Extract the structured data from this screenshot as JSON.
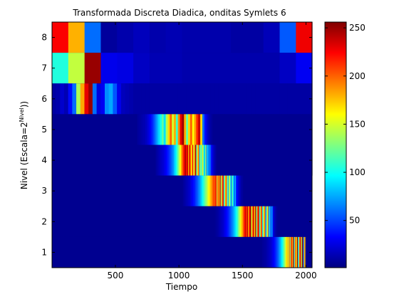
{
  "chart_data": {
    "type": "heatmap",
    "title": "Transformada Discreta Diadica, onditas Symlets 6",
    "xlabel": "Tiempo",
    "ylabel": "Nivel (Escala=2^Nivel))",
    "ylabel_parts": {
      "pre": "Nivel (Escala=2",
      "sup": "Nivel",
      "post": "))"
    },
    "xlim": [
      1,
      2048
    ],
    "xticks": [
      500,
      1000,
      1500,
      2000
    ],
    "ylim": [
      0.5,
      8.5
    ],
    "yticks": [
      1,
      2,
      3,
      4,
      5,
      6,
      7,
      8
    ],
    "colormap": "jet",
    "colorbar": {
      "range": [
        1,
        256
      ],
      "ticks": [
        50,
        100,
        150,
        200,
        250
      ]
    },
    "levels": [
      {
        "level": 8,
        "x_start": 1,
        "bin_width": 128,
        "values": [
          225,
          180,
          60,
          8,
          12,
          16,
          12,
          14,
          12,
          12,
          12,
          10,
          10,
          15,
          55,
          228
        ]
      },
      {
        "level": 7,
        "x_start": 1,
        "bin_width": 128,
        "values": [
          105,
          145,
          250,
          28,
          26,
          18,
          14,
          14,
          12,
          12,
          12,
          12,
          12,
          12,
          18,
          30
        ]
      },
      {
        "level": 6,
        "x_start": 0,
        "bin_width": 32,
        "values": [
          10,
          12,
          20,
          14,
          35,
          60,
          140,
          182,
          230,
          250,
          60,
          24,
          30,
          68,
          75,
          54,
          28,
          16,
          14,
          12,
          10,
          10,
          10,
          10,
          10,
          10,
          10,
          10,
          10,
          10,
          10,
          10,
          10,
          10,
          10,
          10,
          10,
          10,
          10,
          10,
          10,
          10,
          10,
          10,
          10,
          10,
          10,
          10,
          10,
          10,
          10,
          10,
          10,
          10,
          10,
          10,
          10,
          10,
          10,
          10,
          10,
          10,
          10,
          10
        ]
      },
      {
        "level": 5,
        "x_start": 0,
        "bin_width": 16,
        "values": [
          5,
          5,
          5,
          5,
          5,
          5,
          5,
          5,
          5,
          5,
          5,
          5,
          5,
          5,
          5,
          5,
          5,
          5,
          5,
          5,
          5,
          5,
          5,
          5,
          5,
          5,
          5,
          5,
          5,
          5,
          5,
          5,
          5,
          5,
          5,
          5,
          5,
          5,
          5,
          5,
          5,
          5,
          8,
          10,
          12,
          14,
          18,
          24,
          32,
          42,
          55,
          70,
          85,
          100,
          120,
          90,
          140,
          170,
          200,
          150,
          180,
          110,
          190,
          230,
          250,
          180,
          120,
          170,
          200,
          160,
          185,
          215,
          240,
          170,
          60,
          35,
          20,
          12,
          8,
          5,
          5,
          5,
          5,
          5,
          5,
          5,
          5,
          5,
          5,
          5,
          5,
          5,
          5,
          5,
          5,
          5,
          5,
          5,
          5,
          5,
          5,
          5,
          5,
          5,
          5,
          5,
          5,
          5,
          5,
          5,
          5,
          5,
          5,
          5,
          5,
          5,
          5,
          5,
          5,
          5,
          5,
          5,
          5,
          5,
          5,
          5,
          5,
          5
        ]
      },
      {
        "level": 4,
        "x_start": 0,
        "bin_width": 8,
        "values": [
          5,
          5,
          5,
          5,
          5,
          5,
          5,
          5,
          5,
          5,
          5,
          5,
          5,
          5,
          5,
          5,
          5,
          5,
          5,
          5,
          5,
          5,
          5,
          5,
          5,
          5,
          5,
          5,
          5,
          5,
          5,
          5,
          5,
          5,
          5,
          5,
          5,
          5,
          5,
          5,
          5,
          5,
          5,
          5,
          5,
          5,
          5,
          5,
          5,
          5,
          5,
          5,
          5,
          5,
          5,
          5,
          5,
          5,
          5,
          5,
          5,
          5,
          5,
          5,
          5,
          5,
          5,
          5,
          5,
          5,
          5,
          5,
          5,
          5,
          5,
          5,
          5,
          5,
          5,
          5,
          5,
          5,
          5,
          5,
          5,
          5,
          5,
          5,
          5,
          5,
          5,
          5,
          5,
          5,
          5,
          5,
          5,
          5,
          5,
          5,
          5,
          5,
          8,
          10,
          12,
          14,
          16,
          18,
          20,
          22,
          25,
          28,
          32,
          36,
          40,
          45,
          50,
          56,
          62,
          70,
          80,
          90,
          100,
          115,
          130,
          145,
          160,
          180,
          200,
          215,
          230,
          245,
          220,
          240,
          180,
          235,
          195,
          160,
          225,
          150,
          190,
          245,
          120,
          170,
          200,
          90,
          140,
          110,
          165,
          100,
          80,
          135,
          60,
          90,
          50,
          70,
          40,
          30,
          22,
          16,
          12,
          8,
          6,
          5,
          5,
          5,
          5,
          5,
          5,
          5,
          5,
          5,
          5,
          5,
          5,
          5,
          5,
          5,
          5,
          5,
          5,
          5,
          5,
          5,
          5,
          5,
          5,
          5,
          5,
          5,
          5,
          5,
          5,
          5,
          5,
          5,
          5,
          5,
          5,
          5,
          5,
          5,
          5,
          5,
          5,
          5,
          5,
          5,
          5,
          5,
          5,
          5,
          5,
          5,
          5,
          5,
          5,
          5,
          5,
          5,
          5,
          5,
          5,
          5,
          5,
          5,
          5,
          5,
          5,
          5,
          5,
          5,
          5,
          5,
          5,
          5,
          5,
          5,
          5,
          5,
          5,
          5,
          5,
          5,
          5,
          5,
          5,
          5,
          5,
          5,
          5,
          5,
          5,
          5,
          5,
          5
        ]
      },
      {
        "level": 3,
        "x_start": 0,
        "bin_width": 8,
        "values": [
          5,
          5,
          5,
          5,
          5,
          5,
          5,
          5,
          5,
          5,
          5,
          5,
          5,
          5,
          5,
          5,
          5,
          5,
          5,
          5,
          5,
          5,
          5,
          5,
          5,
          5,
          5,
          5,
          5,
          5,
          5,
          5,
          5,
          5,
          5,
          5,
          5,
          5,
          5,
          5,
          5,
          5,
          5,
          5,
          5,
          5,
          5,
          5,
          5,
          5,
          5,
          5,
          5,
          5,
          5,
          5,
          5,
          5,
          5,
          5,
          5,
          5,
          5,
          5,
          5,
          5,
          5,
          5,
          5,
          5,
          5,
          5,
          5,
          5,
          5,
          5,
          5,
          5,
          5,
          5,
          5,
          5,
          5,
          5,
          5,
          5,
          5,
          5,
          5,
          5,
          5,
          5,
          5,
          5,
          5,
          5,
          5,
          5,
          5,
          5,
          5,
          5,
          5,
          5,
          5,
          5,
          5,
          5,
          5,
          5,
          5,
          5,
          5,
          5,
          5,
          5,
          5,
          5,
          5,
          5,
          5,
          5,
          5,
          5,
          5,
          5,
          5,
          5,
          6,
          8,
          10,
          12,
          14,
          16,
          18,
          20,
          24,
          28,
          32,
          36,
          40,
          46,
          52,
          58,
          65,
          72,
          80,
          90,
          100,
          110,
          120,
          130,
          140,
          150,
          160,
          170,
          180,
          190,
          200,
          210,
          200,
          230,
          150,
          215,
          170,
          240,
          135,
          190,
          230,
          100,
          170,
          205,
          130,
          80,
          150,
          110,
          65,
          120,
          90,
          55,
          75,
          40,
          30,
          24,
          18,
          14,
          10,
          8,
          6,
          5,
          5,
          5,
          5,
          5,
          5,
          5,
          5,
          5,
          5,
          5,
          5,
          5,
          5,
          5,
          5,
          5,
          5,
          5,
          5,
          5,
          5,
          5,
          5,
          5,
          5,
          5,
          5,
          5,
          5,
          5,
          5,
          5,
          5,
          5,
          5,
          5,
          5,
          5,
          5,
          5,
          5,
          5,
          5,
          5,
          5,
          5,
          5,
          5,
          5,
          5,
          5,
          5,
          5,
          5,
          5,
          5,
          5,
          5,
          5,
          5,
          5,
          5,
          5,
          5,
          5
        ]
      },
      {
        "level": 2,
        "x_start": 0,
        "bin_width": 8,
        "values": [
          5,
          5,
          5,
          5,
          5,
          5,
          5,
          5,
          5,
          5,
          5,
          5,
          5,
          5,
          5,
          5,
          5,
          5,
          5,
          5,
          5,
          5,
          5,
          5,
          5,
          5,
          5,
          5,
          5,
          5,
          5,
          5,
          5,
          5,
          5,
          5,
          5,
          5,
          5,
          5,
          5,
          5,
          5,
          5,
          5,
          5,
          5,
          5,
          5,
          5,
          5,
          5,
          5,
          5,
          5,
          5,
          5,
          5,
          5,
          5,
          5,
          5,
          5,
          5,
          5,
          5,
          5,
          5,
          5,
          5,
          5,
          5,
          5,
          5,
          5,
          5,
          5,
          5,
          5,
          5,
          5,
          5,
          5,
          5,
          5,
          5,
          5,
          5,
          5,
          5,
          5,
          5,
          5,
          5,
          5,
          5,
          5,
          5,
          5,
          5,
          5,
          5,
          5,
          5,
          5,
          5,
          5,
          5,
          5,
          5,
          5,
          5,
          5,
          5,
          5,
          5,
          5,
          5,
          5,
          5,
          5,
          5,
          5,
          5,
          5,
          5,
          5,
          5,
          5,
          5,
          5,
          5,
          5,
          5,
          5,
          5,
          5,
          5,
          5,
          5,
          5,
          5,
          5,
          5,
          5,
          5,
          5,
          5,
          5,
          5,
          5,
          5,
          5,
          5,
          5,
          5,
          5,
          5,
          5,
          5,
          6,
          7,
          8,
          10,
          12,
          14,
          16,
          18,
          20,
          24,
          28,
          32,
          36,
          40,
          46,
          52,
          58,
          65,
          72,
          80,
          90,
          100,
          110,
          125,
          140,
          155,
          170,
          185,
          200,
          220,
          235,
          210,
          240,
          180,
          225,
          250,
          150,
          200,
          235,
          170,
          245,
          130,
          205,
          230,
          110,
          180,
          215,
          95,
          160,
          200,
          70,
          130,
          175,
          55,
          105,
          40,
          80,
          30,
          20,
          14,
          10,
          7,
          5,
          5,
          5,
          5,
          5,
          5,
          5,
          5,
          5,
          5,
          5,
          5,
          5,
          5,
          5,
          5,
          5,
          5,
          5,
          5,
          5,
          5,
          5,
          5,
          5,
          5,
          5,
          5,
          5
        ]
      },
      {
        "level": 1,
        "x_start": 0,
        "bin_width": 8,
        "values": [
          5,
          5,
          5,
          5,
          5,
          5,
          5,
          5,
          5,
          5,
          5,
          5,
          5,
          5,
          5,
          5,
          5,
          5,
          5,
          5,
          5,
          5,
          5,
          5,
          5,
          5,
          5,
          5,
          5,
          5,
          5,
          5,
          5,
          5,
          5,
          5,
          5,
          5,
          5,
          5,
          5,
          5,
          5,
          5,
          5,
          5,
          5,
          5,
          5,
          5,
          5,
          5,
          5,
          5,
          5,
          5,
          5,
          5,
          5,
          5,
          5,
          5,
          5,
          5,
          5,
          5,
          5,
          5,
          5,
          5,
          5,
          5,
          5,
          5,
          5,
          5,
          5,
          5,
          5,
          5,
          5,
          5,
          5,
          5,
          5,
          5,
          5,
          5,
          5,
          5,
          5,
          5,
          5,
          5,
          5,
          5,
          5,
          5,
          5,
          5,
          5,
          5,
          5,
          5,
          5,
          5,
          5,
          5,
          5,
          5,
          5,
          5,
          5,
          5,
          5,
          5,
          5,
          5,
          5,
          5,
          5,
          5,
          5,
          5,
          5,
          5,
          5,
          5,
          5,
          5,
          5,
          5,
          5,
          5,
          5,
          5,
          5,
          5,
          5,
          5,
          5,
          5,
          5,
          5,
          5,
          5,
          5,
          5,
          5,
          5,
          5,
          5,
          5,
          5,
          5,
          5,
          5,
          5,
          5,
          5,
          5,
          5,
          5,
          5,
          5,
          5,
          5,
          5,
          5,
          5,
          5,
          5,
          5,
          5,
          5,
          5,
          5,
          5,
          5,
          5,
          5,
          5,
          5,
          5,
          5,
          5,
          5,
          5,
          5,
          5,
          5,
          5,
          5,
          5,
          5,
          5,
          5,
          5,
          5,
          5,
          5,
          5,
          5,
          5,
          5,
          5,
          6,
          7,
          8,
          9,
          10,
          12,
          14,
          16,
          18,
          20,
          24,
          28,
          32,
          38,
          44,
          50,
          58,
          66,
          75,
          85,
          95,
          110,
          125,
          140,
          160,
          180,
          150,
          200,
          130,
          220,
          175,
          245,
          110,
          205,
          160,
          250,
          95,
          190,
          230,
          140,
          255,
          60,
          180
        ]
      }
    ]
  }
}
